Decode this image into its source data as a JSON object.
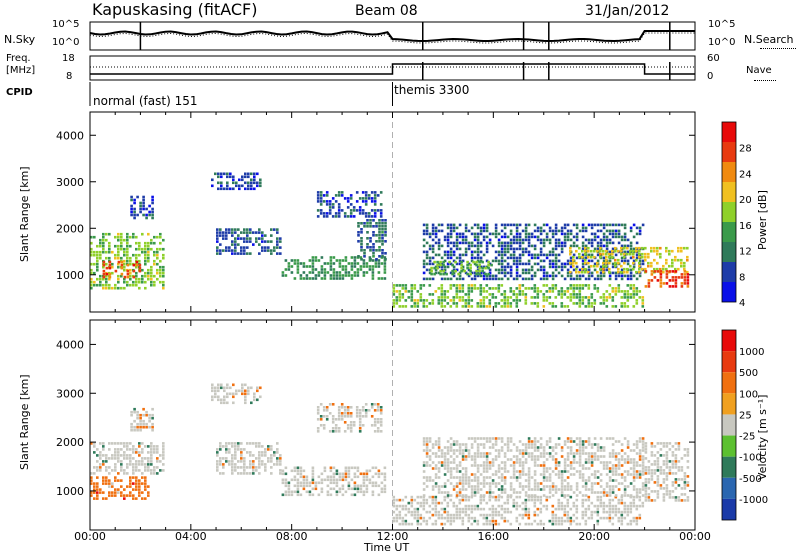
{
  "header": {
    "station": "Kapuskasing (fitACF)",
    "beam": "Beam 08",
    "date": "31/Jan/2012"
  },
  "summary_panels": {
    "nsky_label": "N.Sky",
    "nsearch_label": "N.Search",
    "nsky_ticks": [
      "10^5",
      "10^0"
    ],
    "nsearch_ticks": [
      "10^5",
      "10^0"
    ],
    "freq_label": "Freq.",
    "freq_unit": "[MHz]",
    "freq_ticks": [
      "18",
      "8"
    ],
    "nave_label": "Nave",
    "nave_ticks": [
      "60",
      "0"
    ],
    "cpid_label": "CPID",
    "cpid_segments": [
      "normal (fast) 151",
      "themis 3300"
    ]
  },
  "colors": {
    "scale": [
      "#0a10e8",
      "#1e3ca8",
      "#2f7a5a",
      "#3a9a4a",
      "#8fd02a",
      "#f0c020",
      "#f08a10",
      "#e83a10",
      "#e80a0a"
    ],
    "velocity_scale": [
      "#1a3aa8",
      "#2a66b0",
      "#2f7a5a",
      "#5cc030",
      "#c8c8c0",
      "#f0a020",
      "#f07010",
      "#e83a10",
      "#e80a0a"
    ]
  },
  "chart_data": [
    {
      "type": "heatmap",
      "title": "Power",
      "xlabel": "",
      "ylabel": "Slant Range [km]",
      "x_ticks": [
        "00:00",
        "04:00",
        "08:00",
        "12:00",
        "16:00",
        "20:00",
        "00:00"
      ],
      "xlim_hours": [
        0,
        24
      ],
      "ylim": [
        200,
        4500
      ],
      "y_ticks": [
        1000,
        2000,
        3000,
        4000
      ],
      "colorbar_label": "Power [dB]",
      "colorbar_ticks": [
        "28",
        "24",
        "20",
        "16",
        "12",
        "8",
        "4"
      ],
      "colorbar_range": [
        0,
        30
      ],
      "regions": [
        {
          "t0": 0.0,
          "t1": 3.0,
          "r0": 700,
          "r1": 1900,
          "level": 14
        },
        {
          "t0": 0.5,
          "t1": 2.0,
          "r0": 900,
          "r1": 1300,
          "level": 24
        },
        {
          "t0": 1.6,
          "t1": 2.6,
          "r0": 2200,
          "r1": 2700,
          "level": 5
        },
        {
          "t0": 4.8,
          "t1": 6.8,
          "r0": 2800,
          "r1": 3200,
          "level": 5
        },
        {
          "t0": 5.0,
          "t1": 7.6,
          "r0": 1400,
          "r1": 2000,
          "level": 6
        },
        {
          "t0": 7.6,
          "t1": 11.8,
          "r0": 900,
          "r1": 1400,
          "level": 10
        },
        {
          "t0": 9.0,
          "t1": 11.6,
          "r0": 2200,
          "r1": 2800,
          "level": 5
        },
        {
          "t0": 10.6,
          "t1": 11.8,
          "r0": 1300,
          "r1": 2200,
          "level": 7
        },
        {
          "t0": 12.0,
          "t1": 22.0,
          "r0": 300,
          "r1": 800,
          "level": 14
        },
        {
          "t0": 13.2,
          "t1": 22.0,
          "r0": 900,
          "r1": 2100,
          "level": 6
        },
        {
          "t0": 13.5,
          "t1": 16.0,
          "r0": 1000,
          "r1": 1300,
          "level": 13
        },
        {
          "t0": 19.0,
          "t1": 23.8,
          "r0": 1000,
          "r1": 1600,
          "level": 17
        },
        {
          "t0": 22.0,
          "t1": 23.8,
          "r0": 700,
          "r1": 1100,
          "level": 25
        }
      ]
    },
    {
      "type": "heatmap",
      "title": "Velocity",
      "xlabel": "Time UT",
      "ylabel": "Slant Range [km]",
      "x_ticks": [
        "00:00",
        "04:00",
        "08:00",
        "12:00",
        "16:00",
        "20:00",
        "00:00"
      ],
      "xlim_hours": [
        0,
        24
      ],
      "ylim": [
        200,
        4500
      ],
      "y_ticks": [
        1000,
        2000,
        3000,
        4000
      ],
      "colorbar_label": "Velocity [m s⁻¹]",
      "colorbar_ticks": [
        "1000",
        "500",
        "100",
        "25",
        "-25",
        "-100",
        "-500",
        "-1000"
      ],
      "regions": [
        {
          "t0": 0.0,
          "t1": 2.4,
          "r0": 800,
          "r1": 1300,
          "level": 6
        },
        {
          "t0": 0.0,
          "t1": 3.0,
          "r0": 1300,
          "r1": 2000,
          "level": 4
        },
        {
          "t0": 1.6,
          "t1": 2.6,
          "r0": 2200,
          "r1": 2700,
          "level": 4
        },
        {
          "t0": 4.8,
          "t1": 6.8,
          "r0": 2800,
          "r1": 3200,
          "level": 4
        },
        {
          "t0": 5.0,
          "t1": 7.6,
          "r0": 1300,
          "r1": 2000,
          "level": 4
        },
        {
          "t0": 7.6,
          "t1": 11.8,
          "r0": 900,
          "r1": 1500,
          "level": 4
        },
        {
          "t0": 9.0,
          "t1": 11.6,
          "r0": 2200,
          "r1": 2800,
          "level": 4
        },
        {
          "t0": 12.0,
          "t1": 22.0,
          "r0": 300,
          "r1": 900,
          "level": 4
        },
        {
          "t0": 13.2,
          "t1": 22.0,
          "r0": 900,
          "r1": 2100,
          "level": 4
        },
        {
          "t0": 22.0,
          "t1": 23.8,
          "r0": 800,
          "r1": 2000,
          "level": 4
        }
      ]
    }
  ]
}
